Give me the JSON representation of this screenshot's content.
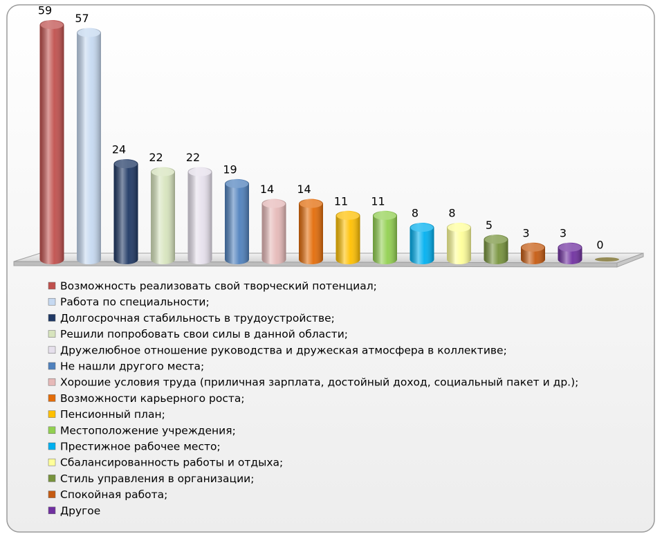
{
  "chart_data": {
    "type": "bar",
    "categories": [
      "Возможность реализовать свой творческий потенциал;",
      "Работа по специальности;",
      "Долгосрочная стабильность в трудоустройстве;",
      "Решили попробовать свои силы в данной области;",
      "Дружелюбное отношение руководства и дружеская атмосфера в коллективе;",
      "Не нашли другого места;",
      "Хорошие условия труда (приличная зарплата, достойный доход, социальный пакет и др.);",
      "Возможности карьерного роста;",
      "Пенсионный план;",
      "Местоположение учреждения;",
      "Престижное рабочее место;",
      "Сбалансированность работы и отдыха;",
      "Стиль управления в организации;",
      "Спокойная работа;",
      "Другое",
      null
    ],
    "values": [
      59,
      57,
      24,
      22,
      22,
      19,
      14,
      14,
      11,
      11,
      8,
      8,
      5,
      3,
      3,
      0
    ],
    "colors": [
      "#c0504d",
      "#c6d9f1",
      "#1f3864",
      "#d7e4bd",
      "#e6e0ec",
      "#4f81bd",
      "#e6b9b8",
      "#e36c09",
      "#ffc000",
      "#92d050",
      "#00b0f0",
      "#ffff99",
      "#77933c",
      "#c55a11",
      "#7030a0",
      "#948a54"
    ],
    "legend": "bottom"
  }
}
